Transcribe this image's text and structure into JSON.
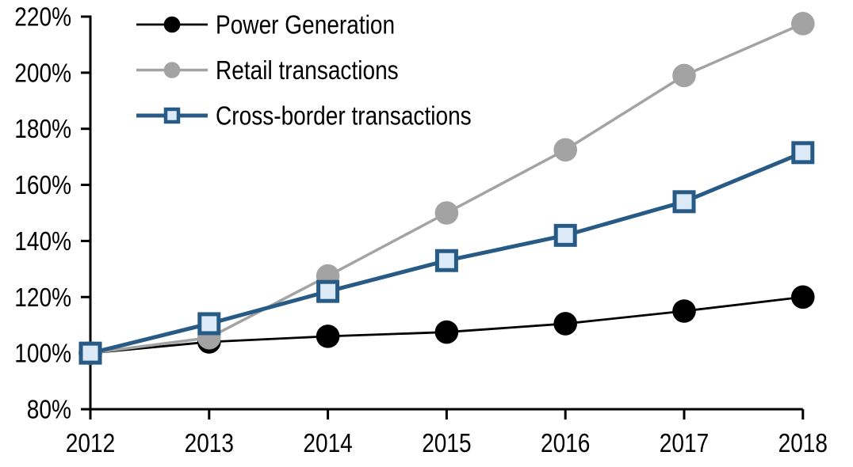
{
  "page": {
    "background_color": "#ffffff"
  },
  "chart_data": {
    "type": "line",
    "title": "",
    "xlabel": "",
    "ylabel": "",
    "x_categories": [
      "2012",
      "2013",
      "2014",
      "2015",
      "2016",
      "2017",
      "2018"
    ],
    "y_axis": {
      "min": 80,
      "max": 220,
      "step": 20,
      "unit": "%",
      "tick_labels": [
        "80%",
        "100%",
        "120%",
        "140%",
        "160%",
        "180%",
        "200%",
        "220%"
      ],
      "grid": false
    },
    "legend": {
      "position": "top-left",
      "entries": [
        "Power Generation",
        "Retail transactions",
        "Cross-border transactions"
      ]
    },
    "series": [
      {
        "name": "Power Generation",
        "marker": "circle",
        "line_color": "#000000",
        "marker_fill": "#000000",
        "marker_stroke": "#000000",
        "line_width": 2.8,
        "values": [
          100,
          104,
          106,
          107.5,
          110.5,
          115,
          120
        ]
      },
      {
        "name": "Retail transactions",
        "marker": "circle",
        "line_color": "#A3A3A3",
        "marker_fill": "#A3A3A3",
        "marker_stroke": "#A3A3A3",
        "line_width": 3.5,
        "values": [
          100,
          105.5,
          127.5,
          150,
          172.5,
          199,
          217.5
        ]
      },
      {
        "name": "Cross-border transactions",
        "marker": "square",
        "line_color": "#275A84",
        "marker_fill": "#DCE9F6",
        "marker_stroke": "#275A84",
        "line_width": 5,
        "values": [
          100,
          110.5,
          122,
          133,
          142,
          154,
          171.5
        ]
      }
    ]
  }
}
